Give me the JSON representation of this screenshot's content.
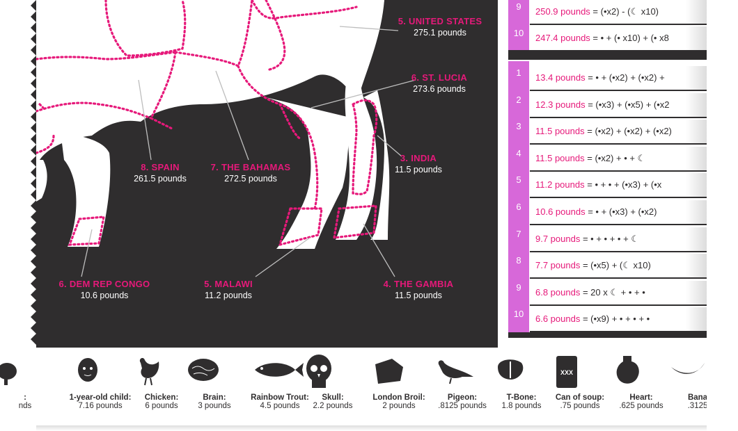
{
  "colors": {
    "panel": "#2f2d2e",
    "accent": "#e6197a",
    "accent_light": "#d768d9",
    "text_dark": "#2f2d2e"
  },
  "map_labels": [
    {
      "id": "us",
      "name": "5. UNITED STATES",
      "value": "275.1 pounds"
    },
    {
      "id": "stlucia",
      "name": "6. ST. LUCIA",
      "value": "273.6 pounds"
    },
    {
      "id": "spain",
      "name": "8. SPAIN",
      "value": "261.5 pounds"
    },
    {
      "id": "bahamas",
      "name": "7. THE BAHAMAS",
      "value": "272.5 pounds"
    },
    {
      "id": "india",
      "name": "3. INDIA",
      "value": "11.5 pounds"
    },
    {
      "id": "congo",
      "name": "6. DEM REP CONGO",
      "value": "10.6 pounds"
    },
    {
      "id": "malawi",
      "name": "5. MALAWI",
      "value": "11.2 pounds"
    },
    {
      "id": "gambia",
      "name": "4. THE GAMBIA",
      "value": "11.5 pounds"
    }
  ],
  "top_list": [
    {
      "rank": "9",
      "value": "250.9 pounds",
      "formula": "= (•x2) - (☾ x10)",
      "icons": [
        "fish-icon",
        "banana-icon"
      ]
    },
    {
      "rank": "10",
      "value": "247.4 pounds",
      "formula": "= • + (• x10) + (• x8",
      "icons": [
        "pig-icon",
        "steak-icon",
        "heart-icon"
      ]
    }
  ],
  "bottom_list": [
    {
      "rank": "1",
      "value": "13.4 pounds",
      "formula": "= • + (•x2) + (•x2) +"
    },
    {
      "rank": "2",
      "value": "12.3 pounds",
      "formula": "= (•x3) + (•x5) + (•x2"
    },
    {
      "rank": "3",
      "value": "11.5 pounds",
      "formula": "= (•x2) + (•x2) + (•x2)"
    },
    {
      "rank": "4",
      "value": "11.5 pounds",
      "formula": "= (•x2) + • + ☾"
    },
    {
      "rank": "5",
      "value": "11.2 pounds",
      "formula": "= • + • + (•x3) + (•x"
    },
    {
      "rank": "6",
      "value": "10.6 pounds",
      "formula": "= • + (•x3) + (•x2)"
    },
    {
      "rank": "7",
      "value": "9.7 pounds",
      "formula": "= • + • + • + ☾"
    },
    {
      "rank": "8",
      "value": "7.7 pounds",
      "formula": "= (•x5) + (☾ x10)"
    },
    {
      "rank": "9",
      "value": "6.8 pounds",
      "formula": "= 20 x ☾ + • + •"
    },
    {
      "rank": "10",
      "value": "6.6 pounds",
      "formula": "= (•x9) + • + • + •"
    }
  ],
  "legend_items": [
    {
      "name": ":",
      "weight": "nds",
      "icon": "pig-icon"
    },
    {
      "name": "1-year-old child:",
      "weight": "7.16 pounds",
      "icon": "baby-face-icon"
    },
    {
      "name": "Chicken:",
      "weight": "6 pounds",
      "icon": "chicken-icon"
    },
    {
      "name": "Brain:",
      "weight": "3 pounds",
      "icon": "brain-icon"
    },
    {
      "name": "Rainbow Trout:",
      "weight": "4.5 pounds",
      "icon": "fish-icon"
    },
    {
      "name": "Skull:",
      "weight": "2.2 pounds",
      "icon": "skull-icon"
    },
    {
      "name": "London Broil:",
      "weight": "2 pounds",
      "icon": "roast-icon"
    },
    {
      "name": "Pigeon:",
      "weight": ".8125 pounds",
      "icon": "pigeon-icon"
    },
    {
      "name": "T-Bone:",
      "weight": "1.8 pounds",
      "icon": "tbone-icon"
    },
    {
      "name": "Can of soup:",
      "weight": ".75 pounds",
      "icon": "can-icon",
      "can_text": "XXX"
    },
    {
      "name": "Heart:",
      "weight": ".625 pounds",
      "icon": "heart-icon"
    },
    {
      "name": "Bana",
      "weight": ".3125",
      "icon": "banana-icon"
    }
  ]
}
